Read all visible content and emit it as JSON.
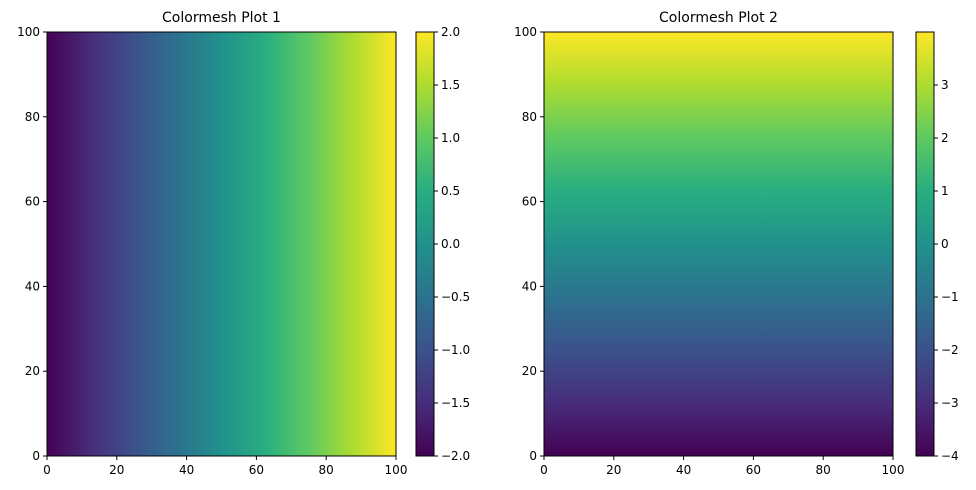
{
  "chart_data": [
    {
      "type": "heatmap",
      "title": "Colormesh Plot 1",
      "gradient_direction": "horizontal",
      "x": [
        0,
        100
      ],
      "y": [
        0,
        100
      ],
      "xlim": [
        0,
        100
      ],
      "ylim": [
        0,
        100
      ],
      "xticks": [
        0,
        20,
        40,
        60,
        80,
        100
      ],
      "yticks": [
        0,
        20,
        40,
        60,
        80,
        100
      ],
      "xtick_labels": [
        "0",
        "20",
        "40",
        "60",
        "80",
        "100"
      ],
      "ytick_labels": [
        "0",
        "20",
        "40",
        "60",
        "80",
        "100"
      ],
      "value_range": [
        -2,
        2
      ],
      "values_along_x": [
        {
          "x": 0,
          "value": -2.0
        },
        {
          "x": 20,
          "value": -1.3
        },
        {
          "x": 40,
          "value": -0.4
        },
        {
          "x": 60,
          "value": 0.4
        },
        {
          "x": 80,
          "value": 1.3
        },
        {
          "x": 100,
          "value": 2.0
        }
      ],
      "colorbar": {
        "ticks": [
          -2.0,
          -1.5,
          -1.0,
          -0.5,
          0.0,
          0.5,
          1.0,
          1.5,
          2.0
        ],
        "tick_labels": [
          "−2.0",
          "−1.5",
          "−1.0",
          "−0.5",
          "0.0",
          "0.5",
          "1.0",
          "1.5",
          "2.0"
        ]
      },
      "colormap": "viridis"
    },
    {
      "type": "heatmap",
      "title": "Colormesh Plot 2",
      "gradient_direction": "vertical",
      "x": [
        0,
        100
      ],
      "y": [
        0,
        100
      ],
      "xlim": [
        0,
        100
      ],
      "ylim": [
        0,
        100
      ],
      "xticks": [
        0,
        20,
        40,
        60,
        80,
        100
      ],
      "yticks": [
        0,
        20,
        40,
        60,
        80,
        100
      ],
      "xtick_labels": [
        "0",
        "20",
        "40",
        "60",
        "80",
        "100"
      ],
      "ytick_labels": [
        "0",
        "20",
        "40",
        "60",
        "80",
        "100"
      ],
      "value_range": [
        -4,
        4
      ],
      "values_along_y": [
        {
          "y": 0,
          "value": -4.0
        },
        {
          "y": 20,
          "value": -2.8
        },
        {
          "y": 40,
          "value": -1.2
        },
        {
          "y": 60,
          "value": 0.4
        },
        {
          "y": 80,
          "value": 2.0
        },
        {
          "y": 100,
          "value": 4.0
        }
      ],
      "colorbar": {
        "ticks": [
          -4,
          -3,
          -2,
          -1,
          0,
          1,
          2,
          3
        ],
        "tick_labels": [
          "−4",
          "−3",
          "−2",
          "−1",
          "0",
          "1",
          "2",
          "3"
        ]
      },
      "colormap": "viridis"
    }
  ]
}
